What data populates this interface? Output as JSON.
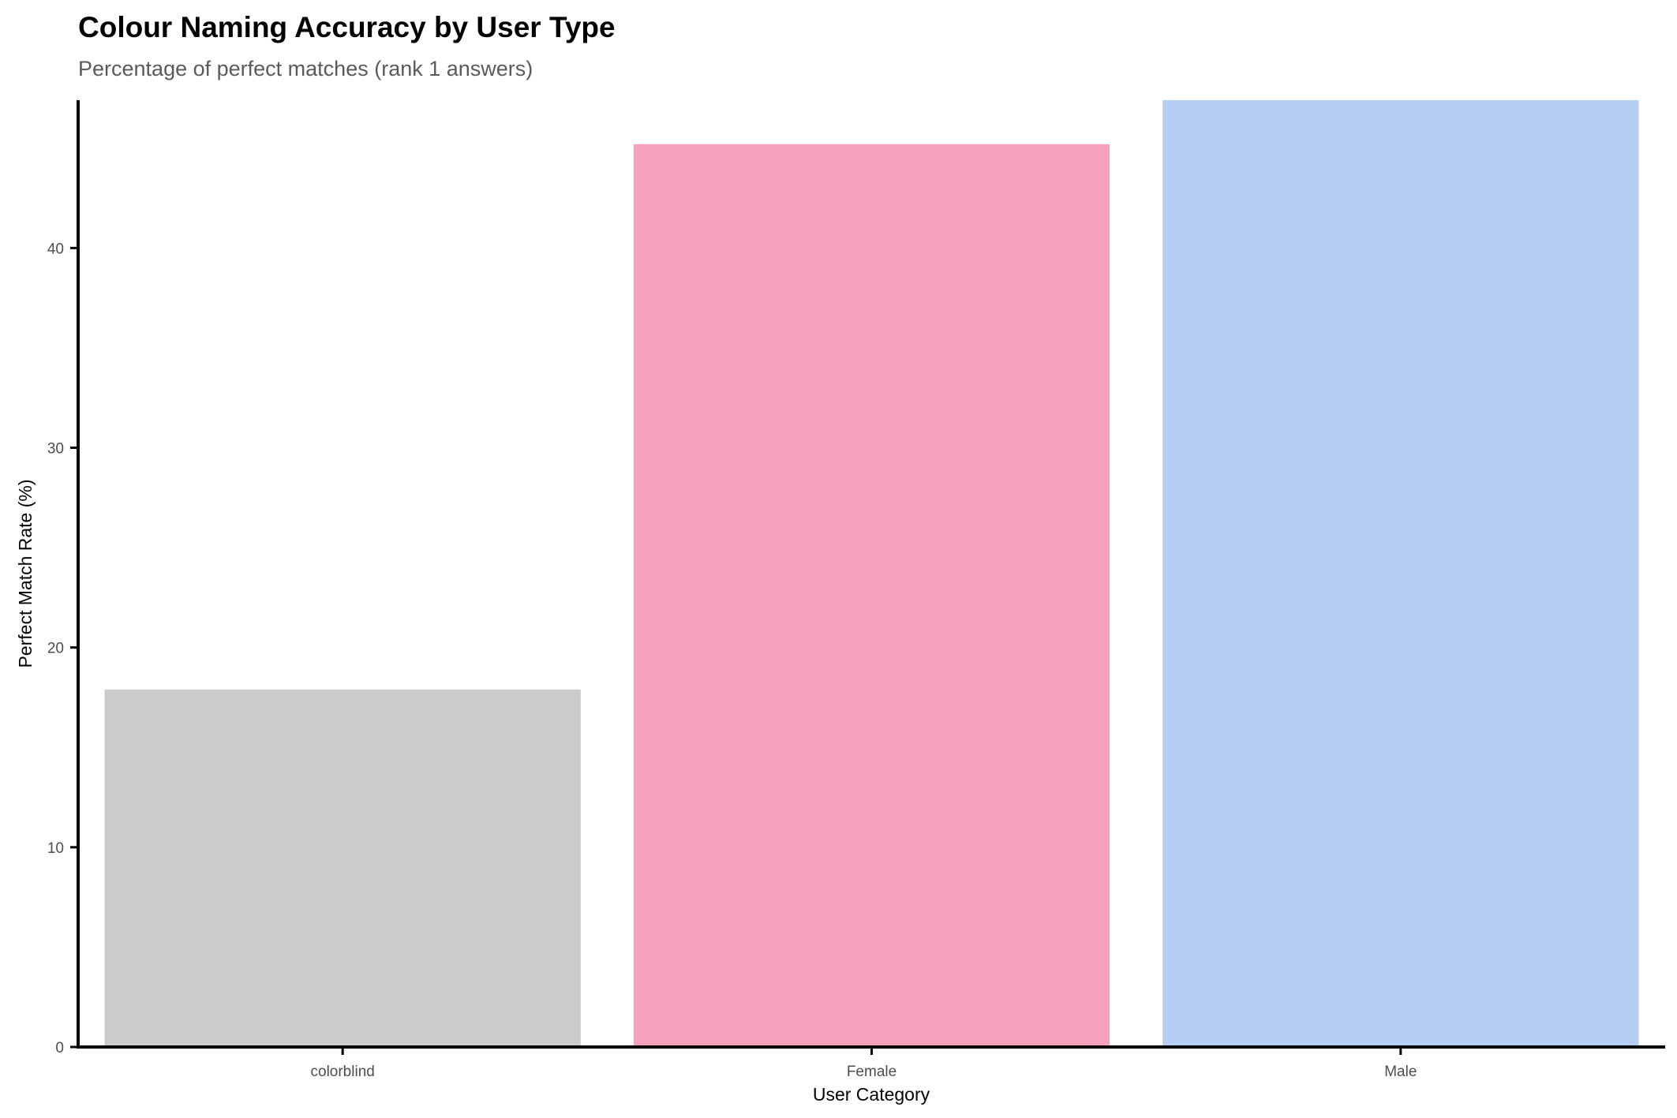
{
  "chart_data": {
    "type": "bar",
    "title": "Colour Naming Accuracy by User Type",
    "subtitle": "Percentage of perfect matches (rank 1 answers)",
    "xlabel": "User Category",
    "ylabel": "Perfect Match Rate (%)",
    "categories": [
      "colorblind",
      "Female",
      "Male"
    ],
    "values": [
      17.9,
      45.2,
      47.4
    ],
    "colors": [
      "#cbcbcb",
      "#f6a1bc",
      "#b4cef3"
    ],
    "ylim": [
      0,
      47.4
    ],
    "yticks": [
      0,
      10,
      20,
      30,
      40
    ],
    "grid": false,
    "legend": "none"
  }
}
